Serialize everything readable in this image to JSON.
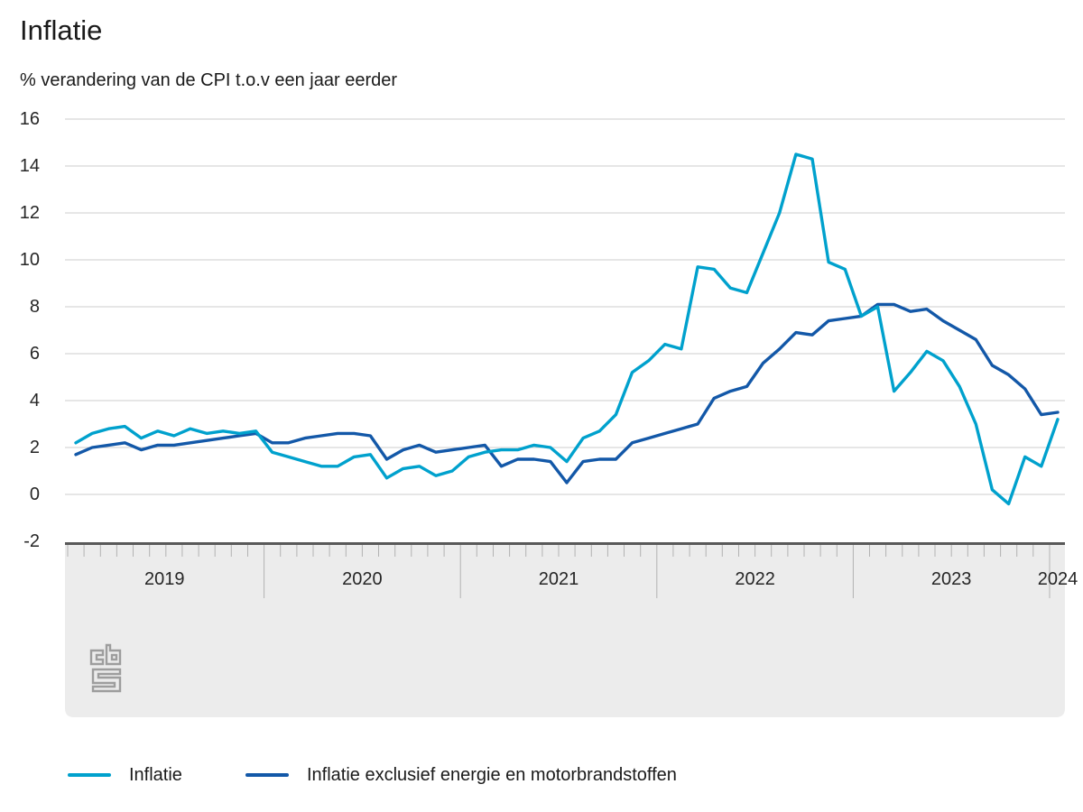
{
  "title": "Inflatie",
  "subtitle": "% verandering van de CPI t.o.v een jaar eerder",
  "colors": {
    "inflatie_line": "#00a1cd",
    "kern_line": "#1358a8",
    "gridline": "#cccccc",
    "axis_line": "#595959",
    "axis_band": "#ececec",
    "tick": "#b3b3b3",
    "text": "#1a1a1a",
    "logo": "#9d9d9d"
  },
  "legend": {
    "items": [
      {
        "label": "Inflatie"
      },
      {
        "label": "Inflatie exclusief energie en motorbrandstoffen"
      }
    ]
  },
  "chart_data": {
    "type": "line",
    "title": "Inflatie",
    "subtitle": "% verandering van de CPI t.o.v een jaar eerder",
    "x_unit": "month",
    "x_start": "2019-01",
    "x_end": "2024-01",
    "x_year_labels": [
      "2019",
      "2020",
      "2021",
      "2022",
      "2023",
      "2024"
    ],
    "ylim": [
      -2,
      16
    ],
    "y_ticks": [
      16,
      14,
      12,
      10,
      8,
      6,
      4,
      2,
      0,
      -2
    ],
    "grid": true,
    "legend_position": "bottom",
    "series": [
      {
        "name": "Inflatie",
        "color": "#00a1cd",
        "values": [
          2.2,
          2.6,
          2.8,
          2.9,
          2.4,
          2.7,
          2.5,
          2.8,
          2.6,
          2.7,
          2.6,
          2.7,
          1.8,
          1.6,
          1.4,
          1.2,
          1.2,
          1.6,
          1.7,
          0.7,
          1.1,
          1.2,
          0.8,
          1.0,
          1.6,
          1.8,
          1.9,
          1.9,
          2.1,
          2.0,
          1.4,
          2.4,
          2.7,
          3.4,
          5.2,
          5.7,
          6.4,
          6.2,
          9.7,
          9.6,
          8.8,
          8.6,
          10.3,
          12.0,
          14.5,
          14.3,
          9.9,
          9.6,
          7.6,
          8.0,
          4.4,
          5.2,
          6.1,
          5.7,
          4.6,
          3.0,
          0.2,
          -0.4,
          1.6,
          1.2,
          3.2
        ]
      },
      {
        "name": "Inflatie exclusief energie en motorbrandstoffen",
        "color": "#1358a8",
        "values": [
          1.7,
          2.0,
          2.1,
          2.2,
          1.9,
          2.1,
          2.1,
          2.2,
          2.3,
          2.4,
          2.5,
          2.6,
          2.2,
          2.2,
          2.4,
          2.5,
          2.6,
          2.6,
          2.5,
          1.5,
          1.9,
          2.1,
          1.8,
          1.9,
          2.0,
          2.1,
          1.2,
          1.5,
          1.5,
          1.4,
          0.5,
          1.4,
          1.5,
          1.5,
          2.2,
          2.4,
          2.6,
          2.8,
          3.0,
          4.1,
          4.4,
          4.6,
          5.6,
          6.2,
          6.9,
          6.8,
          7.4,
          7.5,
          7.6,
          8.1,
          8.1,
          7.8,
          7.9,
          7.4,
          7.0,
          6.6,
          5.5,
          5.1,
          4.5,
          3.4,
          3.5
        ]
      }
    ]
  },
  "source": {
    "logo_name": "CBS"
  }
}
